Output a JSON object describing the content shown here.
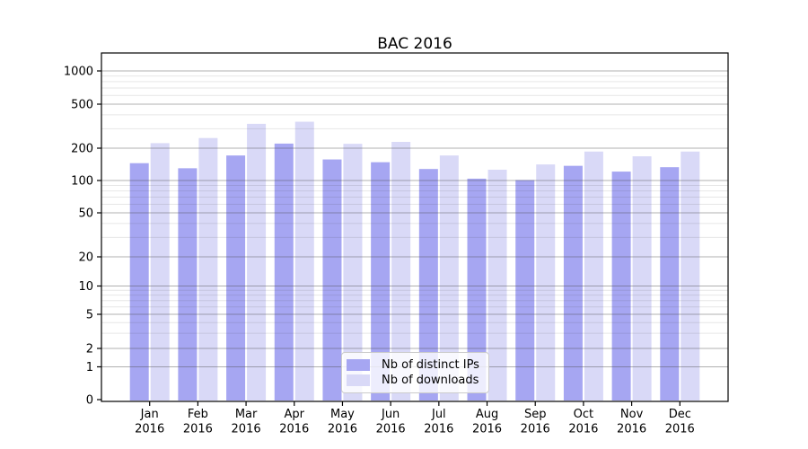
{
  "chart_data": {
    "type": "bar",
    "title": "BAC 2016",
    "categories": [
      "Jan 2016",
      "Feb 2016",
      "Mar 2016",
      "Apr 2016",
      "May 2016",
      "Jun 2016",
      "Jul 2016",
      "Aug 2016",
      "Sep 2016",
      "Oct 2016",
      "Nov 2016",
      "Dec 2016"
    ],
    "series": [
      {
        "name": "Nb of distinct IPs",
        "color": "#a6a6f2",
        "values": [
          145,
          130,
          171,
          220,
          157,
          148,
          128,
          104,
          101,
          137,
          121,
          133
        ]
      },
      {
        "name": "Nb of downloads",
        "color": "#d9d9f7",
        "values": [
          222,
          247,
          332,
          347,
          219,
          228,
          171,
          126,
          141,
          186,
          168,
          186
        ]
      }
    ],
    "yscale": "symlog",
    "yticks": [
      0,
      1,
      2,
      5,
      10,
      20,
      50,
      100,
      200,
      500,
      1000
    ],
    "ytick_labels": [
      "0",
      "1",
      "2",
      "5",
      "10",
      "20",
      "50",
      "100",
      "200",
      "500",
      "1000"
    ],
    "ylim": [
      0,
      1500
    ],
    "xlabel": "",
    "ylabel": "",
    "grid": "both",
    "legend_position": "lower center",
    "axis_color": "#000000",
    "major_grid_color": "#b0b0b0",
    "minor_grid_color": "#e6e6e6"
  }
}
